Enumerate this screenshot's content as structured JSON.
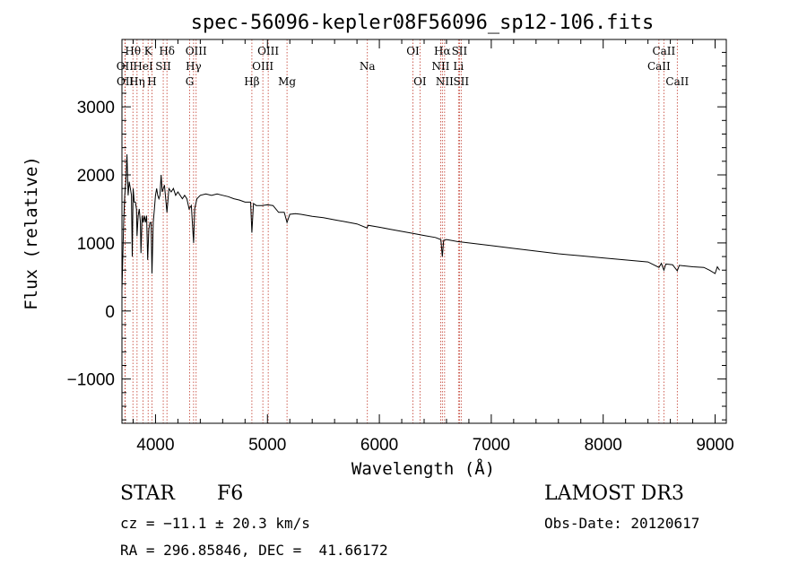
{
  "chart_data": {
    "type": "line",
    "title": "spec-56096-kepler08F56096_sp12-106.fits",
    "xlabel": "Wavelength (Å)",
    "ylabel": "Flux (relative)",
    "xlim": [
      3700,
      9100
    ],
    "ylim": [
      -1650,
      3990
    ],
    "xticks": [
      4000,
      5000,
      6000,
      7000,
      8000,
      9000
    ],
    "yticks": [
      -1000,
      0,
      1000,
      2000,
      3000
    ],
    "ytick_labels": [
      "−1000",
      "0",
      "1000",
      "2000",
      "3000"
    ],
    "spectrum": [
      [
        3700,
        300
      ],
      [
        3705,
        600
      ],
      [
        3715,
        1300
      ],
      [
        3725,
        1700
      ],
      [
        3735,
        1900
      ],
      [
        3745,
        2300
      ],
      [
        3755,
        1700
      ],
      [
        3765,
        1900
      ],
      [
        3775,
        1800
      ],
      [
        3785,
        1700
      ],
      [
        3792,
        800
      ],
      [
        3800,
        1800
      ],
      [
        3810,
        1600
      ],
      [
        3820,
        1600
      ],
      [
        3830,
        1500
      ],
      [
        3835,
        1100
      ],
      [
        3845,
        1400
      ],
      [
        3855,
        1500
      ],
      [
        3865,
        1300
      ],
      [
        3870,
        850
      ],
      [
        3880,
        1400
      ],
      [
        3890,
        1300
      ],
      [
        3900,
        1400
      ],
      [
        3910,
        1300
      ],
      [
        3920,
        1400
      ],
      [
        3930,
        750
      ],
      [
        3940,
        1200
      ],
      [
        3950,
        1300
      ],
      [
        3960,
        1300
      ],
      [
        3968,
        550
      ],
      [
        3980,
        1300
      ],
      [
        3990,
        1500
      ],
      [
        4000,
        1700
      ],
      [
        4010,
        1800
      ],
      [
        4020,
        1700
      ],
      [
        4030,
        1650
      ],
      [
        4040,
        1700
      ],
      [
        4050,
        2000
      ],
      [
        4060,
        1750
      ],
      [
        4080,
        1850
      ],
      [
        4102,
        1450
      ],
      [
        4120,
        1800
      ],
      [
        4140,
        1750
      ],
      [
        4160,
        1800
      ],
      [
        4180,
        1700
      ],
      [
        4200,
        1750
      ],
      [
        4220,
        1700
      ],
      [
        4240,
        1650
      ],
      [
        4260,
        1700
      ],
      [
        4280,
        1650
      ],
      [
        4300,
        1500
      ],
      [
        4320,
        1550
      ],
      [
        4340,
        1000
      ],
      [
        4350,
        1500
      ],
      [
        4370,
        1650
      ],
      [
        4400,
        1700
      ],
      [
        4450,
        1720
      ],
      [
        4500,
        1700
      ],
      [
        4550,
        1720
      ],
      [
        4600,
        1700
      ],
      [
        4650,
        1680
      ],
      [
        4700,
        1650
      ],
      [
        4750,
        1630
      ],
      [
        4800,
        1600
      ],
      [
        4850,
        1600
      ],
      [
        4861,
        1150
      ],
      [
        4875,
        1580
      ],
      [
        4900,
        1550
      ],
      [
        4950,
        1550
      ],
      [
        5000,
        1560
      ],
      [
        5050,
        1550
      ],
      [
        5100,
        1450
      ],
      [
        5150,
        1450
      ],
      [
        5175,
        1300
      ],
      [
        5200,
        1420
      ],
      [
        5250,
        1430
      ],
      [
        5300,
        1420
      ],
      [
        5400,
        1390
      ],
      [
        5500,
        1370
      ],
      [
        5600,
        1340
      ],
      [
        5700,
        1310
      ],
      [
        5800,
        1280
      ],
      [
        5890,
        1220
      ],
      [
        5900,
        1260
      ],
      [
        6000,
        1230
      ],
      [
        6100,
        1200
      ],
      [
        6200,
        1170
      ],
      [
        6300,
        1140
      ],
      [
        6400,
        1110
      ],
      [
        6500,
        1080
      ],
      [
        6550,
        1050
      ],
      [
        6563,
        800
      ],
      [
        6575,
        1040
      ],
      [
        6600,
        1050
      ],
      [
        6700,
        1020
      ],
      [
        6800,
        1000
      ],
      [
        6900,
        980
      ],
      [
        7000,
        960
      ],
      [
        7200,
        920
      ],
      [
        7400,
        880
      ],
      [
        7600,
        840
      ],
      [
        7800,
        810
      ],
      [
        8000,
        780
      ],
      [
        8200,
        750
      ],
      [
        8400,
        720
      ],
      [
        8498,
        640
      ],
      [
        8520,
        700
      ],
      [
        8542,
        600
      ],
      [
        8560,
        690
      ],
      [
        8620,
        680
      ],
      [
        8662,
        590
      ],
      [
        8680,
        670
      ],
      [
        8800,
        650
      ],
      [
        8900,
        640
      ],
      [
        8950,
        600
      ],
      [
        9000,
        550
      ],
      [
        9020,
        650
      ],
      [
        9040,
        600
      ]
    ],
    "lines": [
      {
        "label": "Hθ",
        "x": 3798,
        "row": 0
      },
      {
        "label": "OII",
        "x": 3727,
        "row": 1
      },
      {
        "label": "OII",
        "x": 3729,
        "row": 2
      },
      {
        "label": "Hη",
        "x": 3835,
        "row": 2
      },
      {
        "label": "K",
        "x": 3934,
        "row": 0
      },
      {
        "label": "HeI",
        "x": 3889,
        "row": 1
      },
      {
        "label": "SII",
        "x": 4069,
        "row": 1
      },
      {
        "label": "H",
        "x": 3968,
        "row": 2
      },
      {
        "label": "Hδ",
        "x": 4102,
        "row": 0
      },
      {
        "label": "OIII",
        "x": 4363,
        "row": 0
      },
      {
        "label": "Hγ",
        "x": 4340,
        "row": 1
      },
      {
        "label": "G",
        "x": 4305,
        "row": 2
      },
      {
        "label": "OIII",
        "x": 5007,
        "row": 0
      },
      {
        "label": "OIII",
        "x": 4959,
        "row": 1
      },
      {
        "label": "Hβ",
        "x": 4861,
        "row": 2
      },
      {
        "label": "Mg",
        "x": 5175,
        "row": 2
      },
      {
        "label": "Na",
        "x": 5893,
        "row": 1
      },
      {
        "label": "OI",
        "x": 6300,
        "row": 0
      },
      {
        "label": "OI",
        "x": 6363,
        "row": 2
      },
      {
        "label": "Hα",
        "x": 6563,
        "row": 0
      },
      {
        "label": "SII",
        "x": 6716,
        "row": 0
      },
      {
        "label": "NII",
        "x": 6548,
        "row": 1
      },
      {
        "label": "Li",
        "x": 6707,
        "row": 1
      },
      {
        "label": "NII",
        "x": 6583,
        "row": 2
      },
      {
        "label": "SII",
        "x": 6731,
        "row": 2
      },
      {
        "label": "CaII",
        "x": 8542,
        "row": 0
      },
      {
        "label": "CaII",
        "x": 8498,
        "row": 1
      },
      {
        "label": "CaII",
        "x": 8662,
        "row": 2
      }
    ]
  },
  "info": {
    "class_label": "STAR",
    "subclass": "F6",
    "survey": "LAMOST DR3",
    "cz": "cz = −11.1 ± 20.3 km/s",
    "obs_date": "Obs-Date: 20120617",
    "coords": "RA = 296.85846, DEC =  41.66172"
  },
  "colors": {
    "line_marker": "#c0392b",
    "spectrum": "#000000"
  }
}
